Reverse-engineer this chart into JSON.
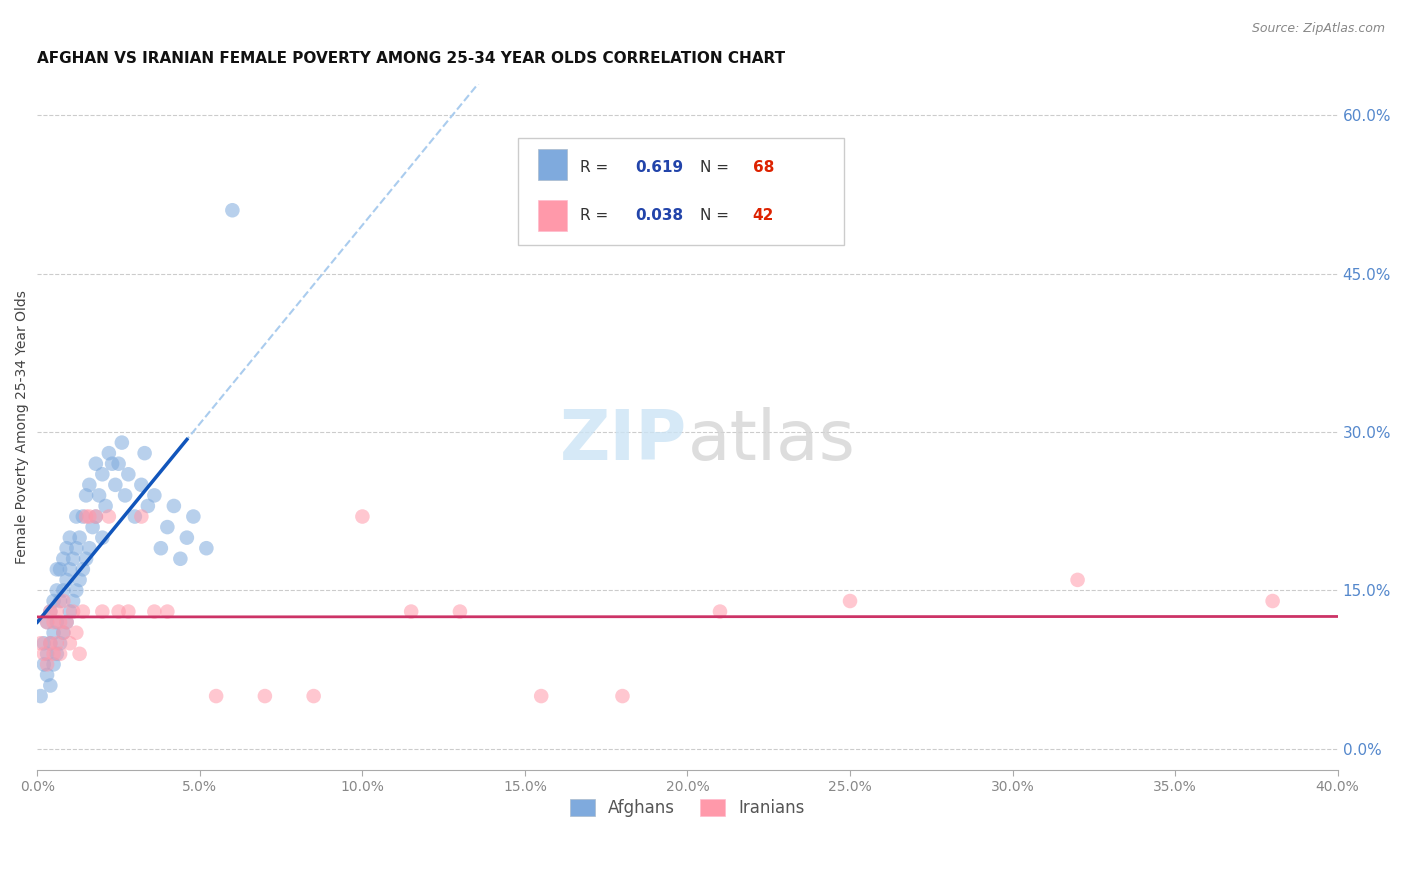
{
  "title": "AFGHAN VS IRANIAN FEMALE POVERTY AMONG 25-34 YEAR OLDS CORRELATION CHART",
  "source": "Source: ZipAtlas.com",
  "ylabel": "Female Poverty Among 25-34 Year Olds",
  "xlim": [
    0.0,
    0.4
  ],
  "ylim": [
    -0.02,
    0.63
  ],
  "afghan_color": "#7faadd",
  "iranian_color": "#ff99aa",
  "afghan_line_color": "#1155bb",
  "iranian_line_color": "#cc3366",
  "dash_color": "#aaccee",
  "afghan_R": 0.619,
  "afghan_N": 68,
  "iranian_R": 0.038,
  "iranian_N": 42,
  "background_color": "#ffffff",
  "grid_color": "#cccccc",
  "right_tick_color": "#5588cc",
  "legend_text_color": "#333333",
  "legend_r_color": "#2244aa",
  "legend_n_color": "#dd2200",
  "afghan_x": [
    0.001,
    0.002,
    0.002,
    0.003,
    0.003,
    0.003,
    0.004,
    0.004,
    0.004,
    0.005,
    0.005,
    0.005,
    0.006,
    0.006,
    0.006,
    0.006,
    0.007,
    0.007,
    0.007,
    0.008,
    0.008,
    0.008,
    0.009,
    0.009,
    0.009,
    0.01,
    0.01,
    0.01,
    0.011,
    0.011,
    0.012,
    0.012,
    0.012,
    0.013,
    0.013,
    0.014,
    0.014,
    0.015,
    0.015,
    0.016,
    0.016,
    0.017,
    0.018,
    0.018,
    0.019,
    0.02,
    0.02,
    0.021,
    0.022,
    0.023,
    0.024,
    0.025,
    0.026,
    0.027,
    0.028,
    0.03,
    0.032,
    0.033,
    0.034,
    0.036,
    0.038,
    0.04,
    0.042,
    0.044,
    0.046,
    0.048,
    0.052,
    0.06
  ],
  "afghan_y": [
    0.05,
    0.08,
    0.1,
    0.07,
    0.09,
    0.12,
    0.06,
    0.1,
    0.13,
    0.08,
    0.11,
    0.14,
    0.09,
    0.12,
    0.15,
    0.17,
    0.1,
    0.14,
    0.17,
    0.11,
    0.15,
    0.18,
    0.12,
    0.16,
    0.19,
    0.13,
    0.17,
    0.2,
    0.14,
    0.18,
    0.15,
    0.19,
    0.22,
    0.16,
    0.2,
    0.17,
    0.22,
    0.18,
    0.24,
    0.19,
    0.25,
    0.21,
    0.22,
    0.27,
    0.24,
    0.2,
    0.26,
    0.23,
    0.28,
    0.27,
    0.25,
    0.27,
    0.29,
    0.24,
    0.26,
    0.22,
    0.25,
    0.28,
    0.23,
    0.24,
    0.19,
    0.21,
    0.23,
    0.18,
    0.2,
    0.22,
    0.19,
    0.51
  ],
  "iranian_x": [
    0.001,
    0.002,
    0.003,
    0.003,
    0.004,
    0.004,
    0.005,
    0.005,
    0.006,
    0.006,
    0.007,
    0.007,
    0.008,
    0.008,
    0.009,
    0.01,
    0.011,
    0.012,
    0.013,
    0.014,
    0.015,
    0.016,
    0.018,
    0.02,
    0.022,
    0.025,
    0.028,
    0.032,
    0.036,
    0.04,
    0.055,
    0.07,
    0.085,
    0.1,
    0.115,
    0.13,
    0.155,
    0.18,
    0.21,
    0.25,
    0.32,
    0.38
  ],
  "iranian_y": [
    0.1,
    0.09,
    0.08,
    0.12,
    0.1,
    0.13,
    0.09,
    0.12,
    0.1,
    0.13,
    0.09,
    0.12,
    0.11,
    0.14,
    0.12,
    0.1,
    0.13,
    0.11,
    0.09,
    0.13,
    0.22,
    0.22,
    0.22,
    0.13,
    0.22,
    0.13,
    0.13,
    0.22,
    0.13,
    0.13,
    0.05,
    0.05,
    0.05,
    0.22,
    0.13,
    0.13,
    0.05,
    0.05,
    0.13,
    0.14,
    0.16,
    0.14
  ]
}
